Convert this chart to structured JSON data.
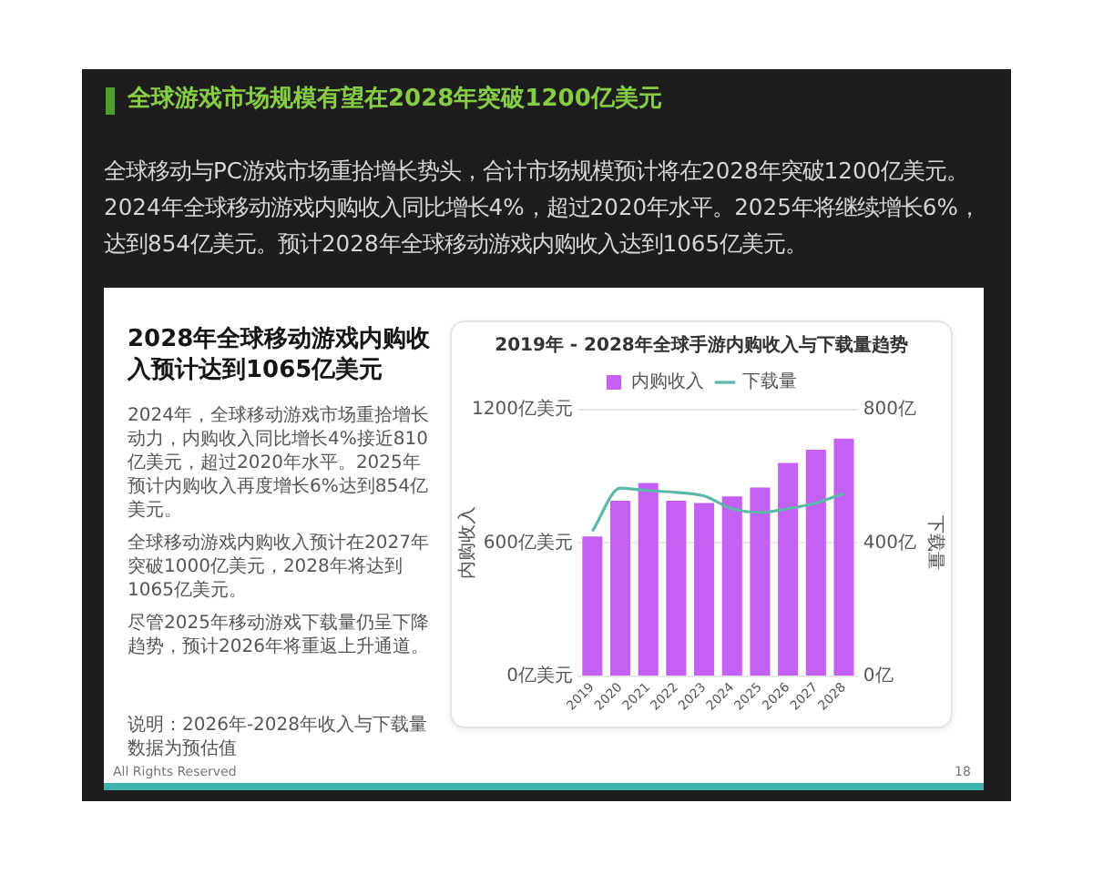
{
  "chart_data": {
    "type": "bar",
    "title": "2019年 - 2028年全球手游内购收入与下载量趋势",
    "ylabel": "内购收入",
    "y2label": "下载量",
    "categories": [
      "2019",
      "2020",
      "2021",
      "2022",
      "2023",
      "2024",
      "2025",
      "2026",
      "2027",
      "2028"
    ],
    "series": [
      {
        "name": "内购收入",
        "color": "#c460f5",
        "values": [
          630,
          790,
          870,
          790,
          780,
          810,
          850,
          960,
          1020,
          1070
        ]
      },
      {
        "name": "下载量",
        "type": "line",
        "axis": "y2",
        "color": "#5cb9a9",
        "marker": "none",
        "values": [
          435,
          565,
          557,
          552,
          541,
          503,
          492,
          503,
          520,
          549
        ]
      }
    ],
    "ylim": [
      0,
      1200
    ],
    "yticks": [
      {
        "value": 0,
        "label": "0亿美元"
      },
      {
        "value": 600,
        "label": "600亿美元"
      },
      {
        "value": 1200,
        "label": "1200亿美元"
      }
    ],
    "y2lim": [
      0,
      800
    ],
    "y2ticks": [
      {
        "value": 0,
        "label": "0亿"
      },
      {
        "value": 400,
        "label": "400亿"
      },
      {
        "value": 800,
        "label": "800亿"
      }
    ],
    "grid": "y",
    "legend": "top",
    "annotations": [
      "全球游戏市场规模有望在2028年突破1200亿美元",
      "全球移动与PC游戏市场重拾增长势头，合计市场规模预计将在2028年突破1200亿美元。2024年全球移动游戏内购收入同比增长4%，超过2020年水平。2025年将继续增长6%，达到854亿美元。预计2028年全球移动游戏内购收入达到1065亿美元。",
      "2028年全球移动游戏内购收入预计达到1065亿美元",
      "2024年，全球移动游戏市场重拾增长动力，内购收入同比增长4%接近810亿美元，超过2020年水平。2025年预计内购收入再度增长6%达到854亿美元。",
      "全球移动游戏内购收入预计在2027年突破1000亿美元，2028年将达到1065亿美元。",
      "尽管2025年移动游戏下载量仍呈下降趋势，预计2026年将重返上升通道。",
      "说明：2026年-2028年收入与下载量数据为预估值",
      "All Rights Reserved",
      "18"
    ]
  }
}
